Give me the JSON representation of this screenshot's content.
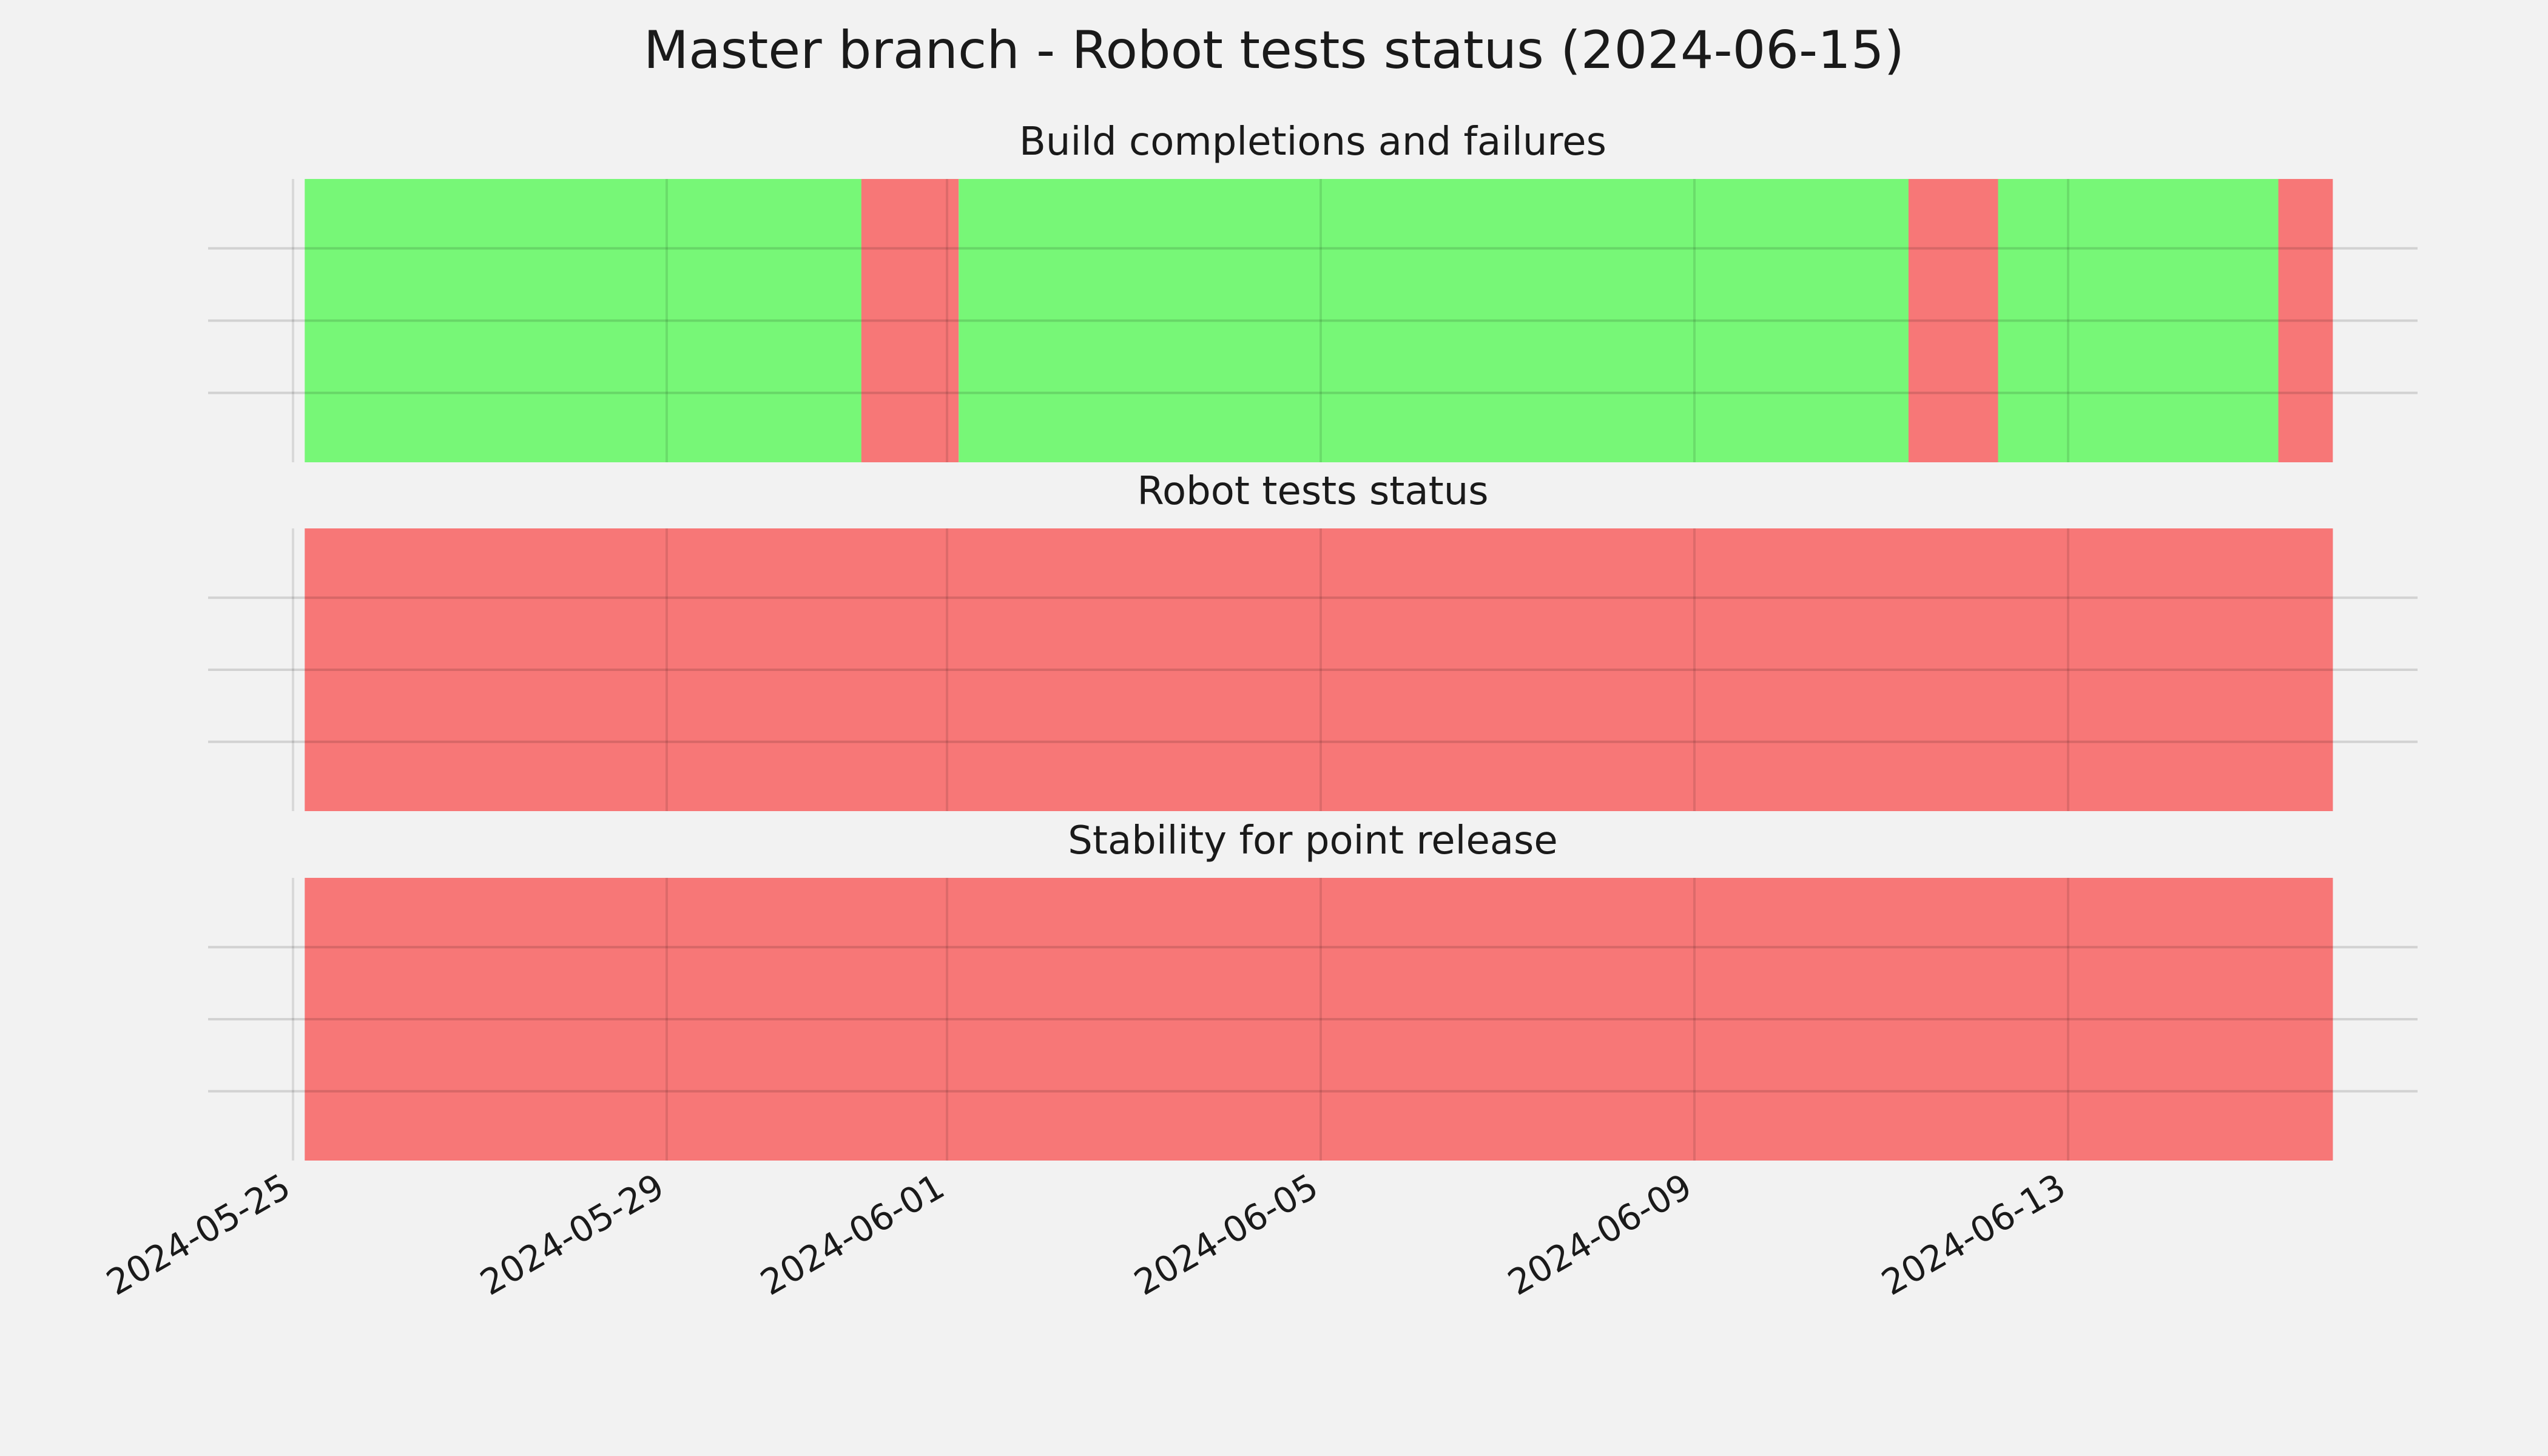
{
  "chart_data": {
    "type": "timeline",
    "title": "Master branch - Robot tests status (2024-06-15)",
    "x_ticks": [
      "2024-05-25",
      "2024-05-29",
      "2024-06-01",
      "2024-06-05",
      "2024-06-09",
      "2024-06-13"
    ],
    "xlim": [
      "2024-05-25",
      "2024-06-16"
    ],
    "grid": true,
    "colors": {
      "success": "#77f777",
      "failure": "#f77777",
      "background": "#f2f2f2"
    },
    "panels": [
      {
        "title": "Build completions and failures",
        "segments": [
          {
            "start": "2024-05-25T03:00",
            "end": "2024-05-31T02:00",
            "status": "success"
          },
          {
            "start": "2024-05-31T02:00",
            "end": "2024-06-01T03:00",
            "status": "failure"
          },
          {
            "start": "2024-06-01T03:00",
            "end": "2024-06-11T07:00",
            "status": "success"
          },
          {
            "start": "2024-06-11T07:00",
            "end": "2024-06-12T06:00",
            "status": "failure"
          },
          {
            "start": "2024-06-12T06:00",
            "end": "2024-06-15T06:00",
            "status": "success"
          },
          {
            "start": "2024-06-15T06:00",
            "end": "2024-06-15T20:00",
            "status": "failure"
          }
        ]
      },
      {
        "title": "Robot tests status",
        "segments": [
          {
            "start": "2024-05-25T03:00",
            "end": "2024-06-15T20:00",
            "status": "failure"
          }
        ]
      },
      {
        "title": "Stability for point release",
        "segments": [
          {
            "start": "2024-05-25T03:00",
            "end": "2024-06-15T20:00",
            "status": "failure"
          }
        ]
      }
    ]
  }
}
